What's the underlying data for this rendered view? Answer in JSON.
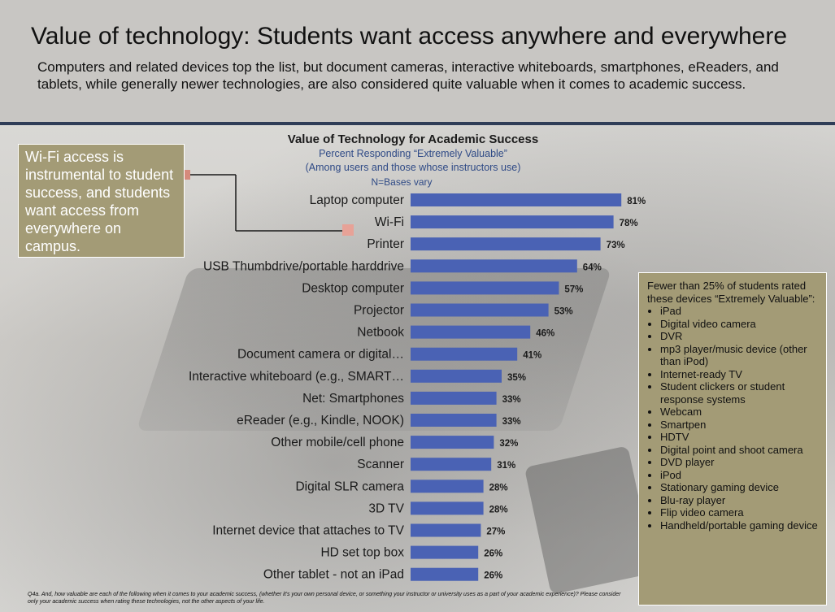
{
  "header": {
    "title": "Value of technology: Students want access anywhere and everywhere",
    "subtitle": "Computers and related devices top the list, but document cameras, interactive whiteboards, smartphones, eReaders, and tablets, while generally newer technologies, are also considered quite valuable when it comes to academic success."
  },
  "callout_left": {
    "text": "Wi-Fi access is instrumental to student success, and students want access from everywhere on campus."
  },
  "callout_right": {
    "intro": "Fewer than 25% of students rated these devices “Extremely Valuable”:",
    "items": [
      "iPad",
      "Digital video camera",
      "DVR",
      "mp3 player/music device (other than iPod)",
      "Internet-ready TV",
      "Student clickers or student response systems",
      "Webcam",
      "Smartpen",
      "HDTV",
      "Digital point and shoot camera",
      "DVD player",
      "iPod",
      "Stationary gaming device",
      "Blu-ray player",
      "Flip video camera",
      "Handheld/portable gaming device"
    ]
  },
  "footnote": "Q4a. And, how valuable are each of the following when it comes to your academic success, (whether it's your own personal device, or something your instructor or university uses as a part of your academic experience)? Please consider only your academic success when rating these technologies, not the other aspects of your life.",
  "colors": {
    "bar": "#4a62b4",
    "callout": "#a39b76",
    "subtitle": "#2f4a86",
    "header_rule": "#2f3d57"
  },
  "chart_data": {
    "type": "bar",
    "orientation": "horizontal",
    "title": "Value of Technology for Academic Success",
    "subtitle_lines": [
      "Percent Responding “Extremely Valuable”",
      "(Among users and those whose instructors use)",
      "N=Bases  vary"
    ],
    "categories": [
      "Laptop computer",
      "Wi-Fi",
      "Printer",
      "USB Thumbdrive/portable harddrive",
      "Desktop computer",
      "Projector",
      "Netbook",
      "Document camera or digital…",
      "Interactive whiteboard (e.g., SMART…",
      "Net: Smartphones",
      "eReader (e.g., Kindle, NOOK)",
      "Other mobile/cell phone",
      "Scanner",
      "Digital SLR camera",
      "3D TV",
      "Internet device that attaches to TV",
      "HD set top box",
      "Other tablet - not an iPad"
    ],
    "values": [
      81,
      78,
      73,
      64,
      57,
      53,
      46,
      41,
      35,
      33,
      33,
      32,
      31,
      28,
      28,
      27,
      26,
      26
    ],
    "value_labels": [
      "81%",
      "78%",
      "73%",
      "64%",
      "57%",
      "53%",
      "46%",
      "41%",
      "35%",
      "33%",
      "33%",
      "32%",
      "31%",
      "28%",
      "28%",
      "27%",
      "26%",
      "26%"
    ],
    "xlim": [
      0,
      100
    ],
    "grid": false,
    "legend": "none"
  }
}
